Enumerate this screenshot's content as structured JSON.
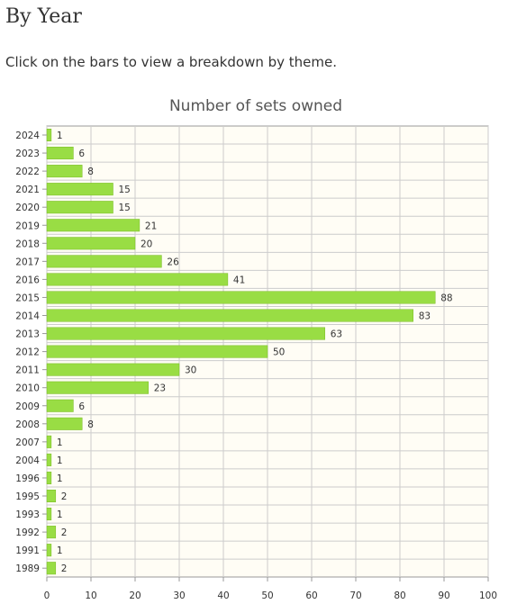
{
  "header": {
    "title": "By Year",
    "intro": "Click on the bars to view a breakdown by theme."
  },
  "chart_data": {
    "type": "bar",
    "orientation": "horizontal",
    "title": "Number of sets owned",
    "xlabel": "",
    "ylabel": "",
    "categories": [
      "2024",
      "2023",
      "2022",
      "2021",
      "2020",
      "2019",
      "2018",
      "2017",
      "2016",
      "2015",
      "2014",
      "2013",
      "2012",
      "2011",
      "2010",
      "2009",
      "2008",
      "2007",
      "2004",
      "1996",
      "1995",
      "1993",
      "1992",
      "1991",
      "1989"
    ],
    "values": [
      1,
      6,
      8,
      15,
      15,
      21,
      20,
      26,
      41,
      88,
      83,
      63,
      50,
      30,
      23,
      6,
      8,
      1,
      1,
      1,
      2,
      1,
      2,
      1,
      2
    ],
    "xlim": [
      0,
      100
    ],
    "xticks": [
      0,
      10,
      20,
      30,
      40,
      50,
      60,
      70,
      80,
      90,
      100
    ],
    "grid": true,
    "legend": "none",
    "colors": {
      "bar": "#99dd44",
      "bar_border": "#77bb22",
      "plot_bg": "#fffdf5",
      "grid": "#cccccc",
      "frame": "#999999"
    }
  }
}
